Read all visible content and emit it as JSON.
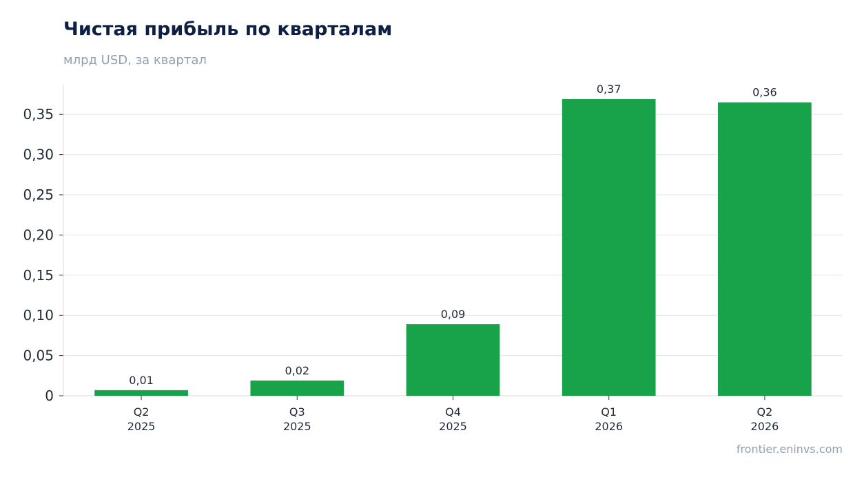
{
  "title": "Чистая прибыль по кварталам",
  "subtitle": "млрд USD, за квартал",
  "source": "frontier.eninvs.com",
  "colors": {
    "bar": "#18a34a",
    "grid": "#e2e6ee",
    "axis": "#d4d8df",
    "title": "#0f1f44",
    "muted": "#8fa1b3"
  },
  "chart_data": {
    "type": "bar",
    "title": "Чистая прибыль по кварталам",
    "subtitle": "млрд USD, за квартал",
    "categories": [
      {
        "line1": "Q2",
        "line2": "2025"
      },
      {
        "line1": "Q3",
        "line2": "2025"
      },
      {
        "line1": "Q4",
        "line2": "2025"
      },
      {
        "line1": "Q1",
        "line2": "2026"
      },
      {
        "line1": "Q2",
        "line2": "2026"
      }
    ],
    "values": [
      0.007,
      0.019,
      0.089,
      0.369,
      0.365
    ],
    "data_labels": [
      "0,01",
      "0,02",
      "0,09",
      "0,37",
      "0,36"
    ],
    "ylim": [
      0,
      0.387
    ],
    "yticks": [
      0,
      0.05,
      0.1,
      0.15,
      0.2,
      0.25,
      0.3,
      0.35
    ],
    "ytick_labels": [
      "0",
      "0,05",
      "0,10",
      "0,15",
      "0,20",
      "0,25",
      "0,30",
      "0,35"
    ],
    "grid": true,
    "legend": "none"
  }
}
